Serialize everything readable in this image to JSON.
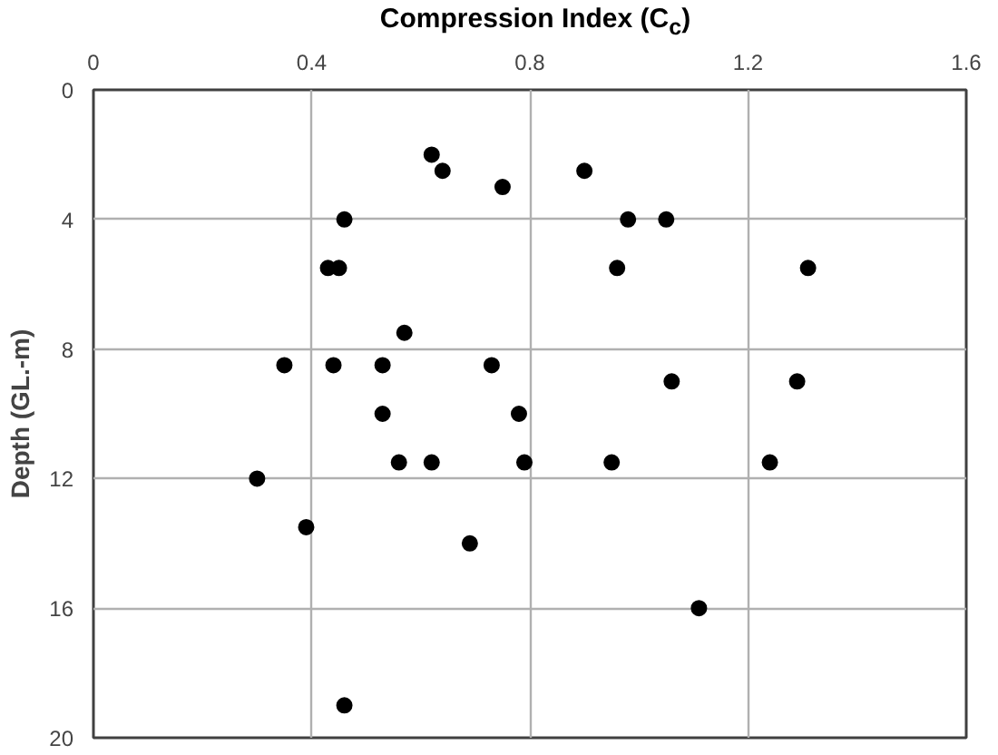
{
  "chart_data": {
    "type": "scatter",
    "xlabel": "Compression Index (C$_{c}$)",
    "ylabel": "Depth (GL.-m)",
    "x": [
      0.62,
      0.64,
      0.75,
      0.9,
      0.46,
      0.98,
      1.05,
      0.43,
      0.45,
      0.96,
      1.31,
      0.57,
      0.35,
      0.44,
      0.53,
      0.73,
      1.06,
      1.29,
      0.53,
      0.78,
      0.56,
      0.62,
      0.79,
      0.95,
      1.24,
      0.3,
      0.39,
      0.69,
      1.11,
      0.46
    ],
    "values": [
      2,
      2.5,
      3,
      2.5,
      4,
      4,
      4,
      5.5,
      5.5,
      5.5,
      5.5,
      7.5,
      8.5,
      8.5,
      8.5,
      8.5,
      9,
      9,
      10,
      10,
      11.5,
      11.5,
      11.5,
      11.5,
      11.5,
      12,
      13.5,
      14,
      16,
      19
    ],
    "color": "#000000",
    "marker": "circle",
    "xlim": [
      0,
      1.6
    ],
    "xticks": [
      0,
      0.4,
      0.8,
      1.2,
      1.6
    ],
    "ylim": [
      20,
      0
    ],
    "yticks": [
      0,
      4,
      8,
      12,
      16,
      20
    ],
    "grid": true,
    "legend": false
  }
}
